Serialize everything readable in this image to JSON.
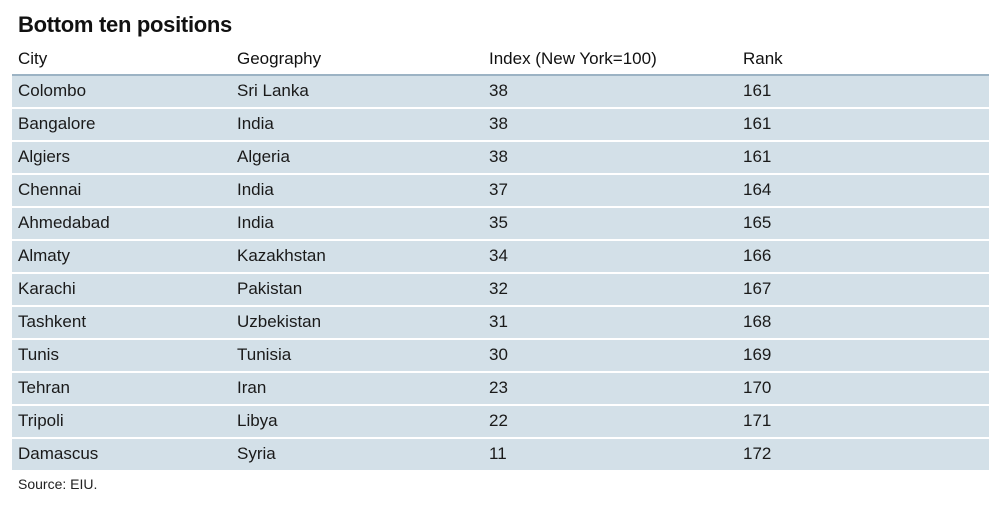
{
  "chart_data": {
    "type": "table",
    "title": "Bottom ten positions",
    "columns": [
      "City",
      "Geography",
      "Index (New York=100)",
      "Rank"
    ],
    "rows": [
      [
        "Colombo",
        "Sri Lanka",
        "38",
        "161"
      ],
      [
        "Bangalore",
        "India",
        "38",
        "161"
      ],
      [
        "Algiers",
        "Algeria",
        "38",
        "161"
      ],
      [
        "Chennai",
        "India",
        "37",
        "164"
      ],
      [
        "Ahmedabad",
        "India",
        "35",
        "165"
      ],
      [
        "Almaty",
        "Kazakhstan",
        "34",
        "166"
      ],
      [
        "Karachi",
        "Pakistan",
        "32",
        "167"
      ],
      [
        "Tashkent",
        "Uzbekistan",
        "31",
        "168"
      ],
      [
        "Tunis",
        "Tunisia",
        "30",
        "169"
      ],
      [
        "Tehran",
        "Iran",
        "23",
        "170"
      ],
      [
        "Tripoli",
        "Libya",
        "22",
        "171"
      ],
      [
        "Damascus",
        "Syria",
        "11",
        "172"
      ]
    ],
    "source": "Source: EIU."
  },
  "colors": {
    "row_fill": "#d3e0e8",
    "header_rule": "#9cb3c4"
  }
}
